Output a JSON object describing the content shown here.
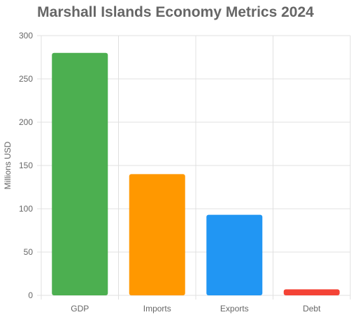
{
  "chart_data": {
    "type": "bar",
    "title": "Marshall Islands Economy Metrics 2024",
    "xlabel": "",
    "ylabel": "Millions USD",
    "categories": [
      "GDP",
      "Imports",
      "Exports",
      "Debt"
    ],
    "values": [
      280,
      140,
      93,
      7
    ],
    "colors": [
      "#4caf50",
      "#ff9800",
      "#2196f3",
      "#f44336"
    ],
    "ylim": [
      0,
      300
    ],
    "yticks": [
      0,
      50,
      100,
      150,
      200,
      250,
      300
    ],
    "grid": true,
    "legend": "none"
  }
}
